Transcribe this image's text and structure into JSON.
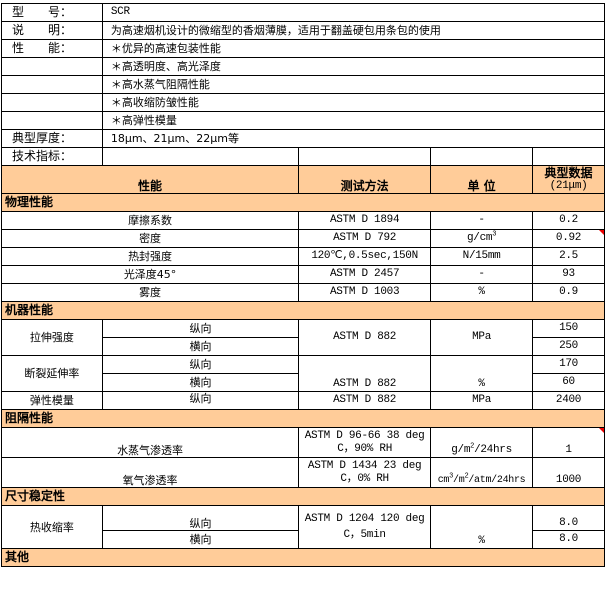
{
  "info": {
    "model_label": "型　　号：",
    "model": "SCR",
    "desc_label": "说　　明：",
    "desc": "为高速烟机设计的微缩型的香烟薄膜，适用于翻盖硬包用条包的使用",
    "features_label": "性　　能：",
    "features": [
      "＊优异的高速包装性能",
      "＊高透明度、高光泽度",
      "＊高水蒸气阻隔性能",
      "＊高收缩防皱性能",
      "＊高弹性模量"
    ],
    "thickness_label": "典型厚度：",
    "thickness": "18μm、21μm、22μm等",
    "spec_label": "技术指标："
  },
  "header": {
    "property": "性能",
    "method": "测试方法",
    "unit": "单 位",
    "typical": "典型数据",
    "typical_sub": "(21μm)"
  },
  "sections": {
    "physical": "物理性能",
    "machine": "机器性能",
    "barrier": "阻隔性能",
    "dimension": "尺寸稳定性",
    "other": "其他"
  },
  "physical": [
    {
      "name": "摩擦系数",
      "method": "ASTM D 1894",
      "unit": "-",
      "value": "0.2"
    },
    {
      "name": "密度",
      "method": "ASTM D 792",
      "unit": "g/cm",
      "unit_sup": "3",
      "value": "0.92"
    },
    {
      "name": "热封强度",
      "method": "120℃,0.5sec,150N",
      "unit": "N/15mm",
      "value": "2.5"
    },
    {
      "name": "光泽度45°",
      "method": "ASTM D 2457",
      "unit": "-",
      "value": "93"
    },
    {
      "name": "雾度",
      "method": "ASTM D 1003",
      "unit": "%",
      "value": "0.9"
    }
  ],
  "machine": {
    "tensile": {
      "name": "拉伸强度",
      "md": "纵向",
      "td": "横向",
      "method": "ASTM D 882",
      "unit": "MPa",
      "md_value": "150",
      "td_value": "250"
    },
    "elongation": {
      "name": "断裂延伸率",
      "md": "纵向",
      "td": "横向",
      "method": "ASTM D 882",
      "unit": "%",
      "md_value": "170",
      "td_value": "60"
    },
    "modulus": {
      "name": "弹性模量",
      "md": "纵向",
      "method": "ASTM D 882",
      "unit": "MPa",
      "value": "2400"
    }
  },
  "barrier": [
    {
      "name": "水蒸气渗透率",
      "method1": "ASTM D 96-66 38 deg",
      "method2": "C，90% RH",
      "unit_a": "g/m",
      "unit_sup": "2",
      "unit_b": "/24hrs",
      "value": "1"
    },
    {
      "name": "氧气渗透率",
      "method1": "ASTM D 1434 23 deg",
      "method2": "C，0% RH",
      "unit_a": "cm",
      "unit_sup_a": "3",
      "unit_mid": "/m",
      "unit_sup": "2",
      "unit_b": "/atm/24hrs",
      "value": "1000"
    }
  ],
  "dimension": {
    "name": "热收缩率",
    "md": "纵向",
    "td": "横向",
    "method1": "ASTM D 1204 120 deg",
    "method2": "C，5min",
    "unit": "%",
    "md_value": "8.0",
    "td_value": "8.0"
  },
  "colors": {
    "section_bg": "#ffcc99",
    "comment_flag": "#ee0000"
  }
}
